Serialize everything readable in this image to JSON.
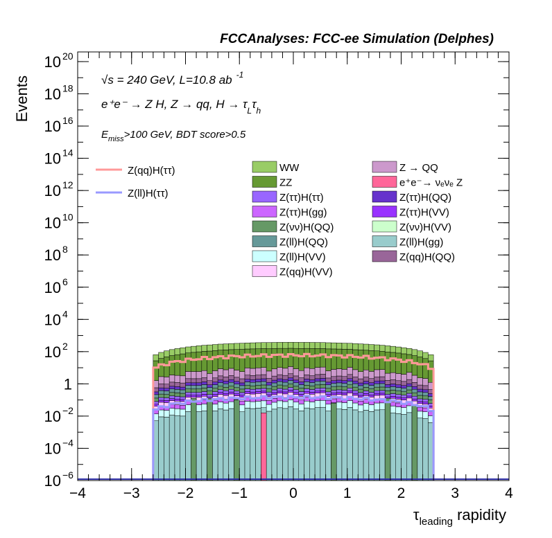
{
  "header": {
    "title": "FCCAnalyses: FCC-ee Simulation (Delphes)"
  },
  "annotations": {
    "line1_sqrt": "√s",
    "line1_rest": " = 240 GeV, L=10.8 ab",
    "line1_sup": "-1",
    "line2": "e⁺e⁻ → Z H, Z → qq, H → τ",
    "line2_sub1": "L",
    "line2_tau": "τ",
    "line2_sub2": "h",
    "line3_E": "E",
    "line3_sub": "miss",
    "line3_rest": ">100 GeV, BDT score>0.5"
  },
  "chart_data": {
    "type": "bar",
    "stacked": true,
    "log_y": true,
    "xlabel": "τleading rapidity",
    "xlabel_main": "τ",
    "xlabel_sub": "leading",
    "xlabel_rest": " rapidity",
    "ylabel": "Events",
    "xlim": [
      -4,
      4
    ],
    "ylim_log10": [
      -6,
      20.6
    ],
    "x_ticks": [
      -4,
      -3,
      -2,
      -1,
      0,
      1,
      2,
      3,
      4
    ],
    "x_tick_labels": [
      "−4",
      "−3",
      "−2",
      "−1",
      "0",
      "1",
      "2",
      "3",
      "4"
    ],
    "y_ticks": [
      {
        "e": -6,
        "mant": "10",
        "exp": "−6"
      },
      {
        "e": -4,
        "mant": "10",
        "exp": "−4"
      },
      {
        "e": -2,
        "mant": "10",
        "exp": "−2"
      },
      {
        "e": 0,
        "mant": "1",
        "exp": ""
      },
      {
        "e": 2,
        "mant": "10",
        "exp": "2"
      },
      {
        "e": 4,
        "mant": "10",
        "exp": "4"
      },
      {
        "e": 6,
        "mant": "10",
        "exp": "6"
      },
      {
        "e": 8,
        "mant": "10",
        "exp": "8"
      },
      {
        "e": 10,
        "mant": "10",
        "exp": "10"
      },
      {
        "e": 12,
        "mant": "10",
        "exp": "12"
      },
      {
        "e": 14,
        "mant": "10",
        "exp": "14"
      },
      {
        "e": 16,
        "mant": "10",
        "exp": "16"
      },
      {
        "e": 18,
        "mant": "10",
        "exp": "18"
      },
      {
        "e": 20,
        "mant": "10",
        "exp": "20"
      }
    ],
    "bin_width": 0.1,
    "x_range": [
      -2.6,
      2.6
    ],
    "stack_layers": [
      {
        "name": "Z(ll)H(gg)",
        "color": "#99cccc",
        "peak": 0.03
      },
      {
        "name": "Z(ll)H(VV)",
        "color": "#ccffff",
        "peak": 0.05
      },
      {
        "name": "Z(ττ)H(gg)",
        "color": "#cc66ff",
        "peak": 0.06
      },
      {
        "name": "Z(qq)H(VV)",
        "color": "#ffccff",
        "peak": 0.1
      },
      {
        "name": "Z(ττ)H(VV)",
        "color": "#9933ff",
        "peak": 0.08
      },
      {
        "name": "Z(ττ)H(ττ)",
        "color": "#9966ff",
        "peak": 0.15
      },
      {
        "name": "Z(νν)H(QQ)",
        "color": "#669966",
        "peak": 0.3
      },
      {
        "name": "Z(ll)H(QQ)",
        "color": "#669999",
        "peak": 0.5
      },
      {
        "name": "Z(ττ)H(QQ)",
        "color": "#6633cc",
        "peak": 0.6
      },
      {
        "name": "Z(qq)H(QQ)",
        "color": "#996699",
        "peak": 1.5
      },
      {
        "name": "Z → QQ",
        "color": "#cc99cc",
        "peak": 6
      },
      {
        "name": "ZZ",
        "color": "#669933",
        "peak": 150
      },
      {
        "name": "WW",
        "color": "#99cc66",
        "peak": 220
      }
    ],
    "spikes": [
      {
        "x": -0.6,
        "log": -1.8,
        "color": "#ff6699"
      },
      {
        "x": -1.9,
        "log": -0.9,
        "color": "#669966"
      },
      {
        "x": -1.6,
        "log": -0.9,
        "color": "#669966"
      },
      {
        "x": -1.1,
        "log": -1.0,
        "color": "#669966"
      },
      {
        "x": 0.7,
        "log": -1.2,
        "color": "#669966"
      },
      {
        "x": 1.7,
        "log": -0.9,
        "color": "#669966"
      },
      {
        "x": 2.2,
        "log": -1.3,
        "color": "#669966"
      }
    ],
    "signal_lines": [
      {
        "name": "Z(qq)H(ττ)",
        "color": "#ff9999",
        "peak": 60,
        "floor_log": -6
      },
      {
        "name": "Z(ll)H(ττ)",
        "color": "#9999ff",
        "peak": 0.15,
        "floor_log": -6
      }
    ],
    "legend_signal": [
      {
        "name": "Z(qq)H(ττ)",
        "color": "#ff9999"
      },
      {
        "name": "Z(ll)H(ττ)",
        "color": "#9999ff"
      }
    ],
    "legend_col1": [
      {
        "name": "WW",
        "color": "#99cc66"
      },
      {
        "name": "ZZ",
        "color": "#669933"
      },
      {
        "name": "Z(ττ)H(ττ)",
        "color": "#9966ff"
      },
      {
        "name": "Z(ττ)H(gg)",
        "color": "#cc66ff"
      },
      {
        "name": "Z(νν)H(QQ)",
        "color": "#669966"
      },
      {
        "name": "Z(ll)H(QQ)",
        "color": "#669999"
      },
      {
        "name": "Z(ll)H(VV)",
        "color": "#ccffff"
      },
      {
        "name": "Z(qq)H(VV)",
        "color": "#ffccff"
      }
    ],
    "legend_col2": [
      {
        "name": "Z → QQ",
        "color": "#cc99cc"
      },
      {
        "name": "e⁺e⁻→ νₑνₑ Z",
        "color": "#ff6699"
      },
      {
        "name": "Z(ττ)H(QQ)",
        "color": "#6633cc"
      },
      {
        "name": "Z(ττ)H(VV)",
        "color": "#9933ff"
      },
      {
        "name": "Z(νν)H(VV)",
        "color": "#ccffcc"
      },
      {
        "name": "Z(ll)H(gg)",
        "color": "#99cccc"
      },
      {
        "name": "Z(qq)H(QQ)",
        "color": "#996699"
      }
    ]
  }
}
